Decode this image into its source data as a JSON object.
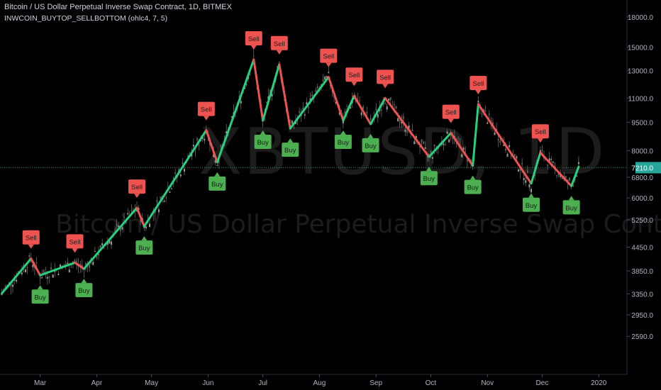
{
  "header": {
    "title": "Bitcoin / US Dollar Perpetual Inverse Swap Contract, 1D, BITMEX",
    "indicator": "INWCOIN_BUYTOP_SELLBOTTOM (ohlc4, 7, 5)"
  },
  "watermark": {
    "symbol": "XBTUSD, 1D",
    "name": "Bitcoin / US Dollar Perpetual Inverse Swap Contract"
  },
  "colors": {
    "background": "#000000",
    "up_line": "#26d07c",
    "down_line": "#ef5350",
    "sell_label": "#ef5350",
    "buy_label": "#4caf50",
    "candle": "#8a8a8a",
    "price_line": "#26a69a",
    "axis_text": "#b2b5be"
  },
  "chart_data": {
    "type": "line",
    "price_scale": "log",
    "y_ticks": [
      18000,
      15000,
      13000,
      11000,
      9500,
      8000,
      6800,
      6000,
      5250,
      4450,
      3850,
      3350,
      2950,
      2590
    ],
    "y_tick_labels": [
      "18000.0",
      "15000.0",
      "13000.0",
      "11000.0",
      "9500.0",
      "8000.0",
      "6800.0",
      "6000.0",
      "5250.0",
      "4450.0",
      "3850.0",
      "3350.0",
      "2950.0",
      "2590.0"
    ],
    "x_ticks": [
      "Mar",
      "Apr",
      "May",
      "Jun",
      "Jul",
      "Aug",
      "Sep",
      "Oct",
      "Nov",
      "Dec",
      "2020"
    ],
    "x_tick_dates": [
      "2019-03-01",
      "2019-04-01",
      "2019-05-01",
      "2019-06-01",
      "2019-07-01",
      "2019-08-01",
      "2019-09-01",
      "2019-10-01",
      "2019-11-01",
      "2019-12-01",
      "2020-01-01"
    ],
    "date_range": [
      "2019-02-07",
      "2020-01-25"
    ],
    "last_price": 7210.0,
    "last_price_label": "7210.0",
    "zigzag": [
      {
        "date": "2019-02-08",
        "price": 3360
      },
      {
        "date": "2019-02-24",
        "price": 4150,
        "signal": "Sell"
      },
      {
        "date": "2019-03-01",
        "price": 3750,
        "signal": "Buy"
      },
      {
        "date": "2019-03-20",
        "price": 4050,
        "signal": "Sell"
      },
      {
        "date": "2019-03-25",
        "price": 3900,
        "signal": "Buy"
      },
      {
        "date": "2019-04-23",
        "price": 5650,
        "signal": "Sell"
      },
      {
        "date": "2019-04-27",
        "price": 5050,
        "signal": "Buy"
      },
      {
        "date": "2019-05-31",
        "price": 9050,
        "signal": "Sell"
      },
      {
        "date": "2019-06-06",
        "price": 7450,
        "signal": "Buy"
      },
      {
        "date": "2019-06-26",
        "price": 13900,
        "signal": "Sell"
      },
      {
        "date": "2019-07-01",
        "price": 9600,
        "signal": "Buy"
      },
      {
        "date": "2019-07-10",
        "price": 13500,
        "signal": "Sell"
      },
      {
        "date": "2019-07-16",
        "price": 9150,
        "signal": "Buy"
      },
      {
        "date": "2019-08-06",
        "price": 12500,
        "signal": "Sell"
      },
      {
        "date": "2019-08-14",
        "price": 9600,
        "signal": "Buy"
      },
      {
        "date": "2019-08-20",
        "price": 11150,
        "signal": "Sell"
      },
      {
        "date": "2019-08-29",
        "price": 9400,
        "signal": "Buy"
      },
      {
        "date": "2019-09-06",
        "price": 11000,
        "signal": "Sell"
      },
      {
        "date": "2019-09-30",
        "price": 7700,
        "signal": "Buy"
      },
      {
        "date": "2019-10-12",
        "price": 8900,
        "signal": "Sell"
      },
      {
        "date": "2019-10-24",
        "price": 7300,
        "signal": "Buy"
      },
      {
        "date": "2019-10-27",
        "price": 10600,
        "signal": "Sell"
      },
      {
        "date": "2019-11-25",
        "price": 6550,
        "signal": "Buy"
      },
      {
        "date": "2019-11-30",
        "price": 7900,
        "signal": "Sell"
      },
      {
        "date": "2019-12-17",
        "price": 6450,
        "signal": "Buy"
      },
      {
        "date": "2019-12-21",
        "price": 7250
      }
    ],
    "signal_labels": {
      "sell": "Sell",
      "buy": "Buy"
    }
  }
}
